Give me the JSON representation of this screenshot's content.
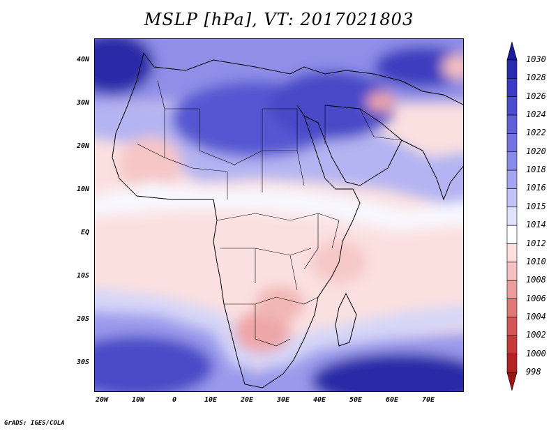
{
  "title": "MSLP [hPa], VT: 2017021803",
  "credit": "GrADS: IGES/COLA",
  "latitude_labels": [
    "40N",
    "30N",
    "20N",
    "10N",
    "EQ",
    "10S",
    "20S",
    "30S"
  ],
  "longitude_labels": [
    "20W",
    "10W",
    "0",
    "10E",
    "20E",
    "30E",
    "40E",
    "50E",
    "60E",
    "70E"
  ],
  "colorbar": {
    "levels": [
      "1030",
      "1028",
      "1026",
      "1024",
      "1022",
      "1020",
      "1018",
      "1016",
      "1015",
      "1014",
      "1012",
      "1010",
      "1008",
      "1006",
      "1004",
      "1002",
      "1000",
      "998"
    ],
    "colors": [
      "#1c1a9c",
      "#2a2ab0",
      "#3a3ac4",
      "#4d4dd0",
      "#6060d8",
      "#7474e0",
      "#8a8ae8",
      "#a4a4f0",
      "#c2c2f6",
      "#e2e2fb",
      "#ffffff",
      "#fcdede",
      "#f6c0c0",
      "#ec9c9c",
      "#e07878",
      "#d45656",
      "#c63a3a",
      "#b42424",
      "#9c1414"
    ]
  },
  "colors": {
    "deep_high": "#23229e",
    "high": "#7070dc",
    "mid": "#c6c6f4",
    "neutral": "#ffffff",
    "low": "#fbd6d6",
    "deep_low": "#ec9c9c"
  }
}
